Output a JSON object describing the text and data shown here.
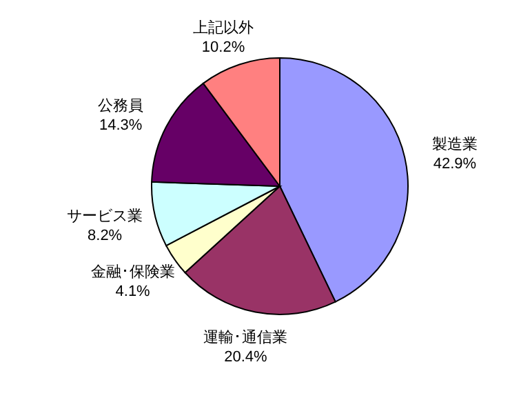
{
  "chart_data": {
    "type": "pie",
    "categories": [
      "製造業",
      "運輸･通信業",
      "金融･保険業",
      "サービス業",
      "公務員",
      "上記以外"
    ],
    "values": [
      42.9,
      20.4,
      4.1,
      8.2,
      14.3,
      10.2
    ],
    "value_labels": [
      "42.9%",
      "20.4%",
      "4.1%",
      "8.2%",
      "14.3%",
      "10.2%"
    ],
    "colors": [
      "#9999ff",
      "#993366",
      "#ffffcc",
      "#ccffff",
      "#660066",
      "#ff8080"
    ]
  }
}
